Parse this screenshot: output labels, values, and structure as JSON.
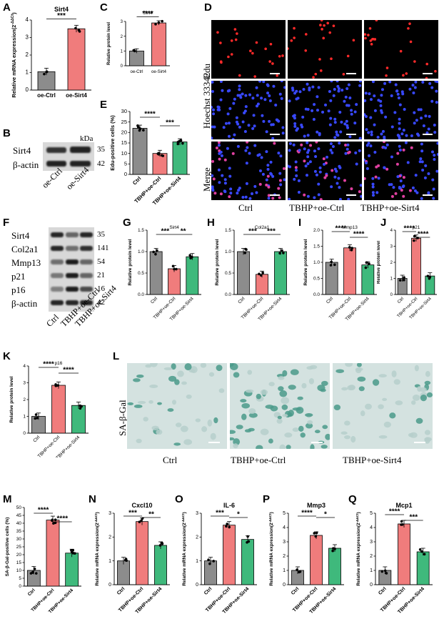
{
  "colors": {
    "gray": "#8c8c8c",
    "red": "#f07c7c",
    "green": "#3fb97c",
    "blot_bg": "#d8d8d8",
    "mic_bg": "#000",
    "sa_bg": "#d4e2e0"
  },
  "letters": {
    "A": "A",
    "B": "B",
    "C": "C",
    "D": "D",
    "E": "E",
    "F": "F",
    "G": "G",
    "H": "H",
    "I": "I",
    "J": "J",
    "K": "K",
    "L": "L",
    "M": "M",
    "N": "N",
    "O": "O",
    "P": "P",
    "Q": "Q"
  },
  "panelB": {
    "kda": "kDa",
    "rows": [
      {
        "label": "Sirt4",
        "kda": "35"
      },
      {
        "label": "β-actin",
        "kda": "42"
      }
    ],
    "lanes": [
      "oe-Ctrl",
      "oe-Sirt4"
    ]
  },
  "panelD": {
    "rows": [
      "Edu",
      "Hoechst 33342",
      "Merge"
    ],
    "cols": [
      "Ctrl",
      "TBHP+oe-Ctrl",
      "TBHP+oe-Sirt4"
    ]
  },
  "panelF": {
    "rows": [
      {
        "label": "Sirt4",
        "kda": "35"
      },
      {
        "label": "Col2a1",
        "kda": "141"
      },
      {
        "label": "Mmp13",
        "kda": "54"
      },
      {
        "label": "p21",
        "kda": "21"
      },
      {
        "label": "p16",
        "kda": "16"
      },
      {
        "label": "β-actin",
        "kda": "42"
      }
    ],
    "lanes": [
      "Ctrl",
      "TBHP+oe-Ctrl",
      "TBHP+oe-Sirt4"
    ]
  },
  "panelL": {
    "ylabel": "SA-β-Gal",
    "cols": [
      "Ctrl",
      "TBHP+oe-Ctrl",
      "TBHP+oe-Sirt4"
    ]
  },
  "chart_data": [
    {
      "id": "A",
      "type": "bar",
      "title": "Sirt4",
      "ylabel": "Relative mRNA expression(2^-ΔΔCt)",
      "categories": [
        "oe-Ctrl",
        "oe-Sirt4"
      ],
      "values": [
        1.05,
        3.5
      ],
      "ylim": [
        0,
        4
      ],
      "yticks": [
        0,
        1,
        2,
        3,
        4
      ],
      "sig": [
        {
          "from": 0,
          "to": 1,
          "label": "***"
        }
      ]
    },
    {
      "id": "C",
      "type": "bar",
      "title": "Sirt4",
      "ylabel": "Relative protein level",
      "categories": [
        "oe-Ctrl",
        "oe-Sirt4"
      ],
      "values": [
        1.0,
        2.9
      ],
      "ylim": [
        0,
        3
      ],
      "yticks": [
        0,
        1,
        2,
        3
      ],
      "sig": [
        {
          "from": 0,
          "to": 1,
          "label": "****"
        }
      ]
    },
    {
      "id": "E",
      "type": "bar",
      "title": "",
      "ylabel": "Edu-positive cells (%)",
      "categories": [
        "Ctrl",
        "TBHP+oe-Ctrl",
        "TBHP+oe-Sirt4"
      ],
      "values": [
        22,
        10,
        15.5
      ],
      "ylim": [
        0,
        30
      ],
      "yticks": [
        0,
        5,
        10,
        15,
        20,
        25,
        30
      ],
      "sig": [
        {
          "from": 0,
          "to": 1,
          "label": "****"
        },
        {
          "from": 1,
          "to": 2,
          "label": "***"
        }
      ]
    },
    {
      "id": "G",
      "type": "bar",
      "title": "Sirt4",
      "ylabel": "Relative protein level",
      "categories": [
        "Ctrl",
        "TBHP+oe-Ctrl",
        "TBHP+oe-Sirt4"
      ],
      "values": [
        1.0,
        0.6,
        0.88
      ],
      "ylim": [
        0,
        1.5
      ],
      "yticks": [
        0.0,
        0.5,
        1.0,
        1.5
      ],
      "sig": [
        {
          "from": 0,
          "to": 1,
          "label": "***"
        },
        {
          "from": 1,
          "to": 2,
          "label": "**"
        }
      ]
    },
    {
      "id": "H",
      "type": "bar",
      "title": "Col2a1",
      "ylabel": "Relative protein level",
      "categories": [
        "Ctrl",
        "TBHP+oe-Ctrl",
        "TBHP+oe-Sirt4"
      ],
      "values": [
        1.0,
        0.47,
        1.0
      ],
      "ylim": [
        0,
        1.5
      ],
      "yticks": [
        0.0,
        0.5,
        1.0,
        1.5
      ],
      "sig": [
        {
          "from": 0,
          "to": 1,
          "label": "***"
        },
        {
          "from": 1,
          "to": 2,
          "label": "***"
        }
      ]
    },
    {
      "id": "I",
      "type": "bar",
      "title": "Mmp13",
      "ylabel": "Relative protein level",
      "categories": [
        "Ctrl",
        "TBHP+oe-Ctrl",
        "TBHP+oe-Sirt4"
      ],
      "values": [
        1.0,
        1.45,
        0.92
      ],
      "ylim": [
        0,
        2.0
      ],
      "yticks": [
        0.0,
        0.5,
        1.0,
        1.5,
        2.0
      ],
      "sig": [
        {
          "from": 0,
          "to": 1,
          "label": "****"
        },
        {
          "from": 1,
          "to": 2,
          "label": "****"
        }
      ]
    },
    {
      "id": "J",
      "type": "bar",
      "title": "p21",
      "ylabel": "Relative protein level",
      "categories": [
        "Ctrl",
        "TBHP+oe-Ctrl",
        "TBHP+oe-Sirt4"
      ],
      "values": [
        1.0,
        3.5,
        1.15
      ],
      "ylim": [
        0,
        4
      ],
      "yticks": [
        0,
        1,
        2,
        3,
        4
      ],
      "sig": [
        {
          "from": 0,
          "to": 1,
          "label": "****"
        },
        {
          "from": 1,
          "to": 2,
          "label": "****"
        }
      ]
    },
    {
      "id": "K",
      "type": "bar",
      "title": "p16",
      "ylabel": "Relative protein level",
      "categories": [
        "Ctrl",
        "TBHP+oe-Ctrl",
        "TBHP+oe-Sirt4"
      ],
      "values": [
        1.0,
        2.85,
        1.65
      ],
      "ylim": [
        0,
        4
      ],
      "yticks": [
        0,
        1,
        2,
        3,
        4
      ],
      "sig": [
        {
          "from": 0,
          "to": 1,
          "label": "****"
        },
        {
          "from": 1,
          "to": 2,
          "label": "****"
        }
      ]
    },
    {
      "id": "M",
      "type": "bar",
      "title": "",
      "ylabel": "SA-β-Gal-positive cells (%)",
      "categories": [
        "Ctrl",
        "TBHP+oe-Ctrl",
        "TBHP+oe-Sirt4"
      ],
      "values": [
        10,
        42,
        21
      ],
      "ylim": [
        0,
        50
      ],
      "yticks": [
        0,
        5,
        10,
        15,
        20,
        25,
        30,
        35,
        40,
        45,
        50
      ],
      "sig": [
        {
          "from": 0,
          "to": 1,
          "label": "****"
        },
        {
          "from": 1,
          "to": 2,
          "label": "****"
        }
      ]
    },
    {
      "id": "N",
      "type": "bar",
      "title": "Cxcl10",
      "ylabel": "Relative mRNA expression(2^-ΔΔCt)",
      "categories": [
        "Ctrl",
        "TBHP+oe-Ctrl",
        "TBHP+oe-Sirt4"
      ],
      "values": [
        1.0,
        2.65,
        1.65
      ],
      "ylim": [
        0,
        3
      ],
      "yticks": [
        0,
        1,
        2,
        3
      ],
      "sig": [
        {
          "from": 0,
          "to": 1,
          "label": "***"
        },
        {
          "from": 1,
          "to": 2,
          "label": "**"
        }
      ]
    },
    {
      "id": "O",
      "type": "bar",
      "title": "IL-6",
      "ylabel": "Relative mRNA expression(2^-ΔΔCt)",
      "categories": [
        "Ctrl",
        "TBHP+oe-Ctrl",
        "TBHP+oe-Sirt4"
      ],
      "values": [
        1.0,
        2.5,
        1.9
      ],
      "ylim": [
        0,
        3
      ],
      "yticks": [
        0,
        1,
        2,
        3
      ],
      "sig": [
        {
          "from": 0,
          "to": 1,
          "label": "***"
        },
        {
          "from": 1,
          "to": 2,
          "label": "*"
        }
      ]
    },
    {
      "id": "P",
      "type": "bar",
      "title": "Mmp3",
      "ylabel": "Relative mRNA expression(2^-ΔΔCt)",
      "categories": [
        "Ctrl",
        "TBHP+oe-Ctrl",
        "TBHP+oe-Sirt4"
      ],
      "values": [
        1.0,
        3.45,
        2.55
      ],
      "ylim": [
        0,
        5
      ],
      "yticks": [
        0,
        1,
        2,
        3,
        4,
        5
      ],
      "sig": [
        {
          "from": 0,
          "to": 1,
          "label": "****"
        },
        {
          "from": 1,
          "to": 2,
          "label": "*"
        }
      ]
    },
    {
      "id": "Q",
      "type": "bar",
      "title": "Mcp1",
      "ylabel": "Relative mRNA expression(2^-ΔΔCt)",
      "categories": [
        "Ctrl",
        "TBHP+oe-Ctrl",
        "TBHP+oe-Sirt4"
      ],
      "values": [
        1.0,
        4.25,
        2.3
      ],
      "ylim": [
        0,
        5
      ],
      "yticks": [
        0,
        1,
        2,
        3,
        4,
        5
      ],
      "sig": [
        {
          "from": 0,
          "to": 1,
          "label": "****"
        },
        {
          "from": 1,
          "to": 2,
          "label": "***"
        }
      ]
    }
  ]
}
